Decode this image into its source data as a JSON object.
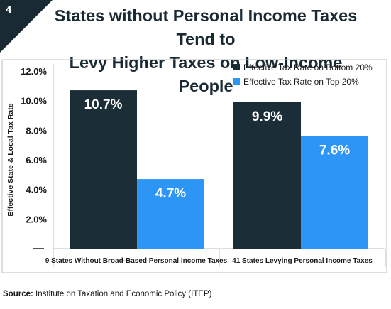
{
  "badge": "4",
  "chart_data": {
    "type": "bar",
    "title_lines": [
      "States without Personal Income Taxes Tend to",
      "Levy Higher Taxes on Low-Income People"
    ],
    "ylabel": "Effective State & Local Tax Rate",
    "xlabel": "",
    "ylim": [
      0,
      12
    ],
    "yticks": [
      "2.0%",
      "4.0%",
      "6.0%",
      "8.0%",
      "10.0%",
      "12.0%"
    ],
    "ytick_values": [
      2,
      4,
      6,
      8,
      10,
      12
    ],
    "categories": [
      "9 States Without Broad-Based Personal Income Taxes",
      "41 States Levying Personal Income Taxes"
    ],
    "series": [
      {
        "name": "Effective Tax Rate on Bottom 20%",
        "color": "#1b2d36",
        "values": [
          10.7,
          9.9
        ],
        "labels": [
          "10.7%",
          "9.9%"
        ]
      },
      {
        "name": "Effective Tax Rate on Top 20%",
        "color": "#2d95f5",
        "values": [
          4.7,
          7.6
        ],
        "labels": [
          "4.7%",
          "7.6%"
        ]
      }
    ],
    "legend": "top-right",
    "grid": false
  },
  "source": {
    "label": "Source:",
    "text": "Institute on Taxation and Economic Policy (ITEP)"
  }
}
